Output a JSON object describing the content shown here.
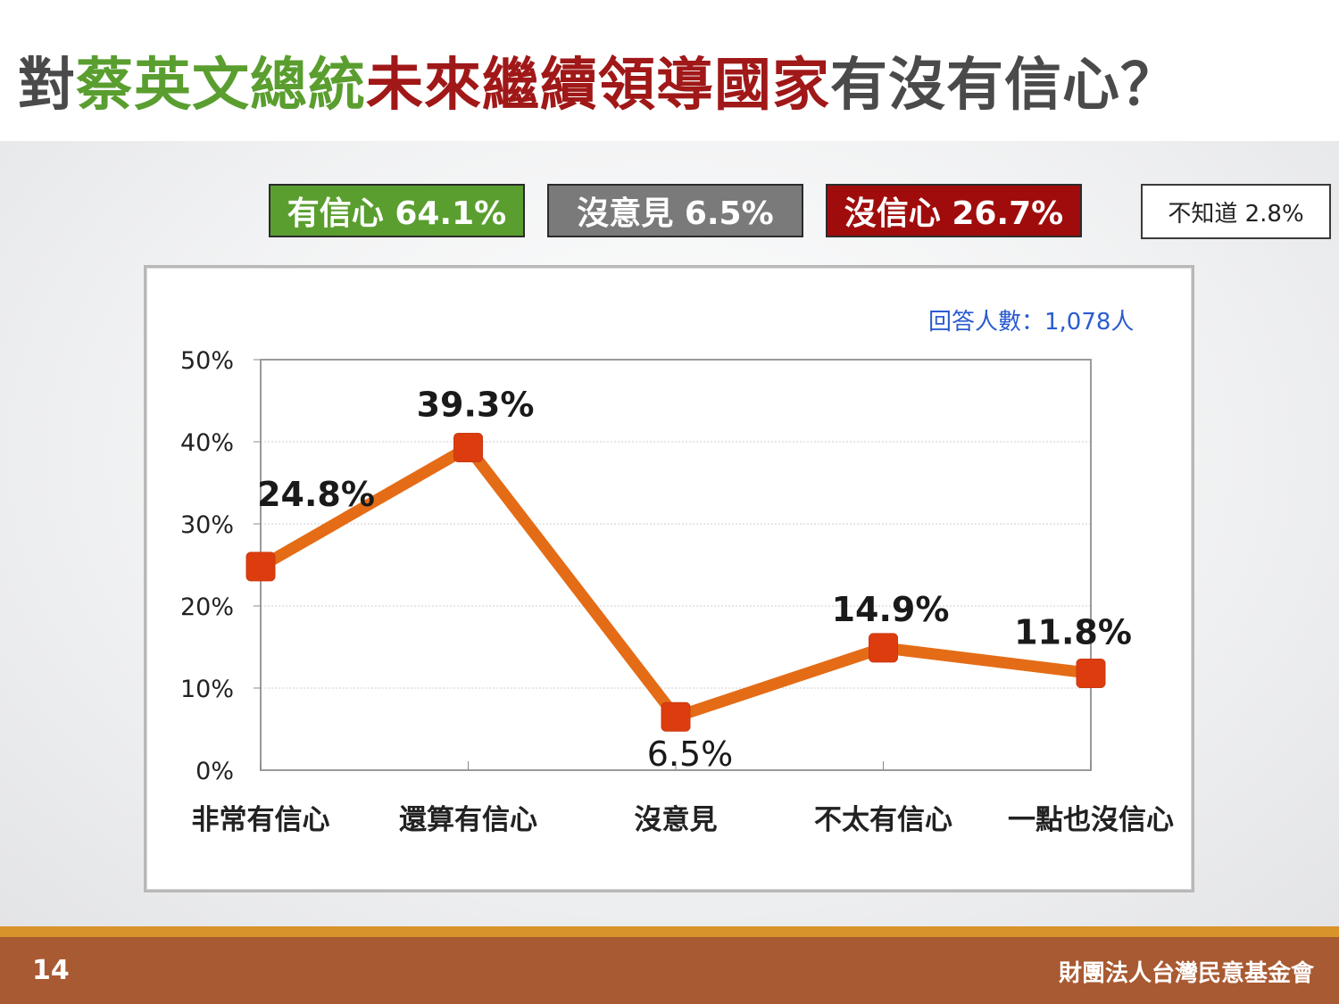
{
  "title": {
    "segments": [
      {
        "text": "對",
        "color": "#4a4a4a"
      },
      {
        "text": "蔡英文總統",
        "color": "#5a9e2f"
      },
      {
        "text": "未來繼續領導國家",
        "color": "#a01818"
      },
      {
        "text": "有沒有信心？",
        "color": "#4a4a4a"
      }
    ]
  },
  "summary": {
    "confident": "有信心 64.1%",
    "no_opinion": "沒意見 6.5%",
    "not_confident": "沒信心 26.7%",
    "dont_know": "不知道 2.8%"
  },
  "respondents": "回答人數：1,078人",
  "chart_data": {
    "type": "line",
    "categories": [
      "非常有信心",
      "還算有信心",
      "沒意見",
      "不太有信心",
      "一點也沒信心"
    ],
    "values": [
      24.8,
      39.3,
      6.5,
      14.9,
      11.8
    ],
    "data_labels": [
      "24.8%",
      "39.3%",
      "6.5%",
      "14.9%",
      "11.8%"
    ],
    "ylim": [
      0,
      50
    ],
    "yticks": [
      "0%",
      "10%",
      "20%",
      "30%",
      "40%",
      "50%"
    ],
    "grid": true,
    "line_color": "#e46c16",
    "marker_color": "#dd3c0f",
    "title": "",
    "xlabel": "",
    "ylabel": ""
  },
  "footer": {
    "page": "14",
    "org": "財團法人台灣民意基金會"
  },
  "colors": {
    "green": "#5a9e2f",
    "gray": "#7a7a7a",
    "red": "#a00c0c",
    "footer": "#a85a32",
    "footer_stripe": "#d9932b"
  }
}
